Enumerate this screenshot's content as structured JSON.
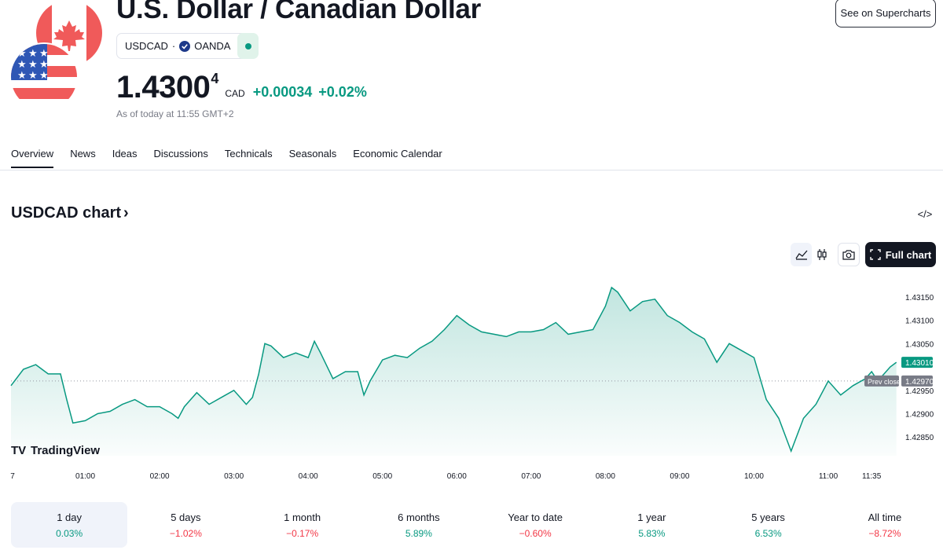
{
  "header": {
    "title": "U.S. Dollar / Canadian Dollar",
    "supercharts_label": "See on Supercharts",
    "symbol": "USDCAD",
    "separator": "·",
    "exchange": "OANDA",
    "price_main": "1.4300",
    "price_sup": "4",
    "currency": "CAD",
    "change_abs": "+0.00034",
    "change_pct": "+0.02%",
    "as_of": "As of today at 11:55 GMT+2"
  },
  "tabs": [
    {
      "label": "Overview",
      "active": true
    },
    {
      "label": "News"
    },
    {
      "label": "Ideas"
    },
    {
      "label": "Discussions"
    },
    {
      "label": "Technicals"
    },
    {
      "label": "Seasonals"
    },
    {
      "label": "Economic Calendar"
    }
  ],
  "chart_section": {
    "title": "USDCAD chart",
    "title_arrow": "›",
    "embed_icon": "</>",
    "full_chart_label": "Full chart",
    "branding": "TradingView"
  },
  "chart_data": {
    "type": "area",
    "color": "#089981",
    "x_tick_labels": [
      "7",
      "01:00",
      "02:00",
      "03:00",
      "04:00",
      "05:00",
      "06:00",
      "07:00",
      "08:00",
      "09:00",
      "10:00",
      "11:00",
      "11:35"
    ],
    "y_tick_labels": [
      "1.43150",
      "1.43100",
      "1.43050",
      "1.42950",
      "1.42900",
      "1.42850"
    ],
    "ylim": [
      1.4281,
      1.4318
    ],
    "prev_close": 1.4297,
    "prev_close_label": "Prev close",
    "prev_close_value": "1.42970",
    "last_value": "1.43010",
    "series": [
      {
        "t": "00:00",
        "v": 1.4296
      },
      {
        "t": "00:10",
        "v": 1.42995
      },
      {
        "t": "00:20",
        "v": 1.43005
      },
      {
        "t": "00:30",
        "v": 1.42985
      },
      {
        "t": "00:40",
        "v": 1.42985
      },
      {
        "t": "00:45",
        "v": 1.4293
      },
      {
        "t": "00:50",
        "v": 1.4288
      },
      {
        "t": "01:00",
        "v": 1.42885
      },
      {
        "t": "01:10",
        "v": 1.429
      },
      {
        "t": "01:20",
        "v": 1.42905
      },
      {
        "t": "01:30",
        "v": 1.4292
      },
      {
        "t": "01:40",
        "v": 1.4293
      },
      {
        "t": "01:50",
        "v": 1.42915
      },
      {
        "t": "02:00",
        "v": 1.42915
      },
      {
        "t": "02:10",
        "v": 1.429
      },
      {
        "t": "02:15",
        "v": 1.4289
      },
      {
        "t": "02:20",
        "v": 1.42915
      },
      {
        "t": "02:30",
        "v": 1.42945
      },
      {
        "t": "02:40",
        "v": 1.4292
      },
      {
        "t": "02:50",
        "v": 1.42935
      },
      {
        "t": "03:00",
        "v": 1.4295
      },
      {
        "t": "03:10",
        "v": 1.4292
      },
      {
        "t": "03:15",
        "v": 1.42935
      },
      {
        "t": "03:20",
        "v": 1.42985
      },
      {
        "t": "03:25",
        "v": 1.4305
      },
      {
        "t": "03:30",
        "v": 1.43045
      },
      {
        "t": "03:40",
        "v": 1.4302
      },
      {
        "t": "03:50",
        "v": 1.4303
      },
      {
        "t": "04:00",
        "v": 1.4302
      },
      {
        "t": "04:05",
        "v": 1.43055
      },
      {
        "t": "04:10",
        "v": 1.4303
      },
      {
        "t": "04:20",
        "v": 1.42975
      },
      {
        "t": "04:30",
        "v": 1.4299
      },
      {
        "t": "04:40",
        "v": 1.4299
      },
      {
        "t": "04:45",
        "v": 1.4294
      },
      {
        "t": "04:50",
        "v": 1.4297
      },
      {
        "t": "05:00",
        "v": 1.43015
      },
      {
        "t": "05:10",
        "v": 1.43025
      },
      {
        "t": "05:20",
        "v": 1.4302
      },
      {
        "t": "05:30",
        "v": 1.4304
      },
      {
        "t": "05:40",
        "v": 1.43055
      },
      {
        "t": "05:50",
        "v": 1.4308
      },
      {
        "t": "06:00",
        "v": 1.4311
      },
      {
        "t": "06:10",
        "v": 1.4309
      },
      {
        "t": "06:20",
        "v": 1.43075
      },
      {
        "t": "06:30",
        "v": 1.4307
      },
      {
        "t": "06:40",
        "v": 1.43065
      },
      {
        "t": "06:50",
        "v": 1.43075
      },
      {
        "t": "07:00",
        "v": 1.43075
      },
      {
        "t": "07:10",
        "v": 1.4308
      },
      {
        "t": "07:20",
        "v": 1.43095
      },
      {
        "t": "07:30",
        "v": 1.4307
      },
      {
        "t": "07:40",
        "v": 1.43075
      },
      {
        "t": "07:50",
        "v": 1.4308
      },
      {
        "t": "08:00",
        "v": 1.4313
      },
      {
        "t": "08:05",
        "v": 1.4317
      },
      {
        "t": "08:10",
        "v": 1.4316
      },
      {
        "t": "08:20",
        "v": 1.4312
      },
      {
        "t": "08:30",
        "v": 1.4314
      },
      {
        "t": "08:40",
        "v": 1.43145
      },
      {
        "t": "08:50",
        "v": 1.4311
      },
      {
        "t": "09:00",
        "v": 1.43095
      },
      {
        "t": "09:10",
        "v": 1.43075
      },
      {
        "t": "09:20",
        "v": 1.4306
      },
      {
        "t": "09:30",
        "v": 1.4301
      },
      {
        "t": "09:40",
        "v": 1.4305
      },
      {
        "t": "09:50",
        "v": 1.43035
      },
      {
        "t": "10:00",
        "v": 1.4302
      },
      {
        "t": "10:10",
        "v": 1.4293
      },
      {
        "t": "10:20",
        "v": 1.4289
      },
      {
        "t": "10:30",
        "v": 1.4282
      },
      {
        "t": "10:40",
        "v": 1.4289
      },
      {
        "t": "10:50",
        "v": 1.4292
      },
      {
        "t": "11:00",
        "v": 1.4297
      },
      {
        "t": "11:10",
        "v": 1.4294
      },
      {
        "t": "11:20",
        "v": 1.4296
      },
      {
        "t": "11:30",
        "v": 1.42975
      },
      {
        "t": "11:35",
        "v": 1.4299
      },
      {
        "t": "11:40",
        "v": 1.4297
      },
      {
        "t": "11:50",
        "v": 1.43
      },
      {
        "t": "11:55",
        "v": 1.4301
      }
    ]
  },
  "periods": [
    {
      "label": "1 day",
      "value": "0.03%",
      "dir": "pos",
      "active": true
    },
    {
      "label": "5 days",
      "value": "−1.02%",
      "dir": "neg"
    },
    {
      "label": "1 month",
      "value": "−0.17%",
      "dir": "neg"
    },
    {
      "label": "6 months",
      "value": "5.89%",
      "dir": "pos"
    },
    {
      "label": "Year to date",
      "value": "−0.60%",
      "dir": "neg"
    },
    {
      "label": "1 year",
      "value": "5.83%",
      "dir": "pos"
    },
    {
      "label": "5 years",
      "value": "6.53%",
      "dir": "pos"
    },
    {
      "label": "All time",
      "value": "−8.72%",
      "dir": "neg"
    }
  ]
}
